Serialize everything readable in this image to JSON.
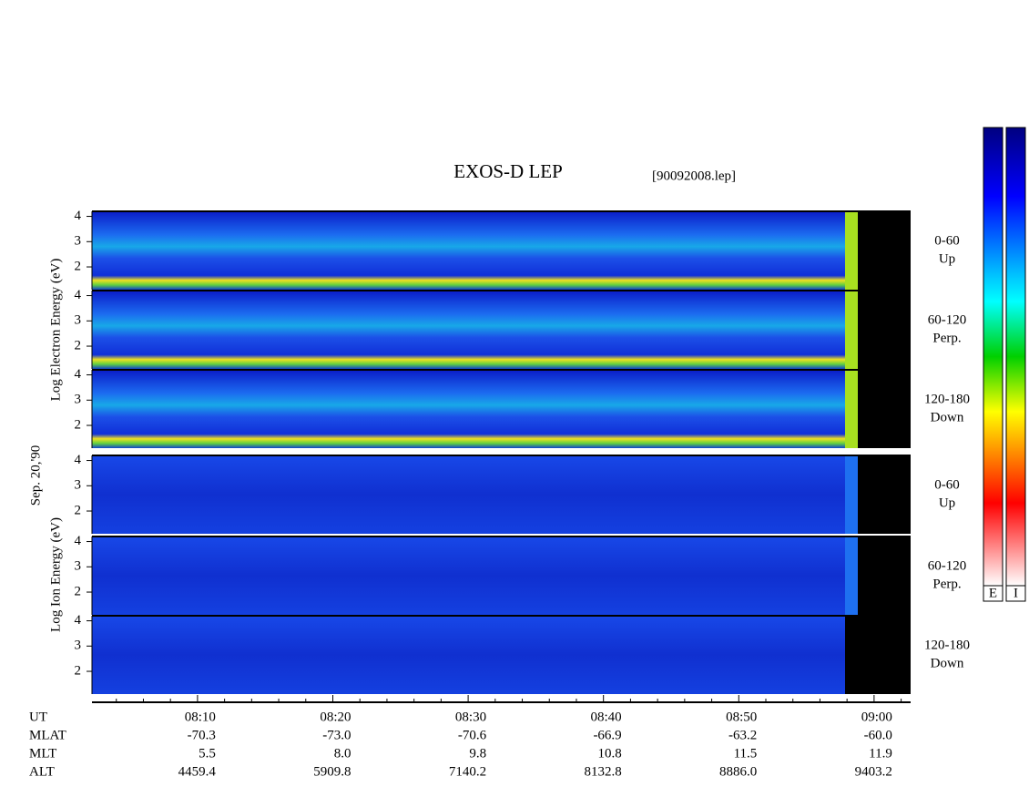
{
  "chart_data": {
    "type": "spectrogram",
    "title": "EXOS-D LEP",
    "file": "[90092008.lep]",
    "date_label": "Sep. 20,'90",
    "ylim": [
      1.1,
      4.2
    ],
    "yticks": [
      2,
      3,
      4
    ],
    "xlim": [
      482.2,
      542.7
    ],
    "xticks": [
      {
        "value": 490,
        "label": "08:10"
      },
      {
        "value": 500,
        "label": "08:20"
      },
      {
        "value": 510,
        "label": "08:30"
      },
      {
        "value": 520,
        "label": "08:40"
      },
      {
        "value": 530,
        "label": "08:50"
      },
      {
        "value": 540,
        "label": "09:00"
      }
    ],
    "xminorticks": [
      484,
      486,
      488,
      492,
      494,
      496,
      498,
      502,
      504,
      506,
      508,
      512,
      514,
      516,
      518,
      522,
      524,
      526,
      528,
      532,
      534,
      536,
      538,
      542
    ],
    "x_label": "UT",
    "groups": [
      {
        "ylabel": "Log Electron Energy (eV)",
        "panels": [
          {
            "angle": "0-60",
            "direction": "Up"
          },
          {
            "angle": "60-120",
            "direction": "Perp."
          },
          {
            "angle": "120-180",
            "direction": "Down"
          }
        ]
      },
      {
        "ylabel": "Log Ion Energy (eV)",
        "panels": [
          {
            "angle": "0-60",
            "direction": "Up"
          },
          {
            "angle": "60-120",
            "direction": "Perp."
          },
          {
            "angle": "120-180",
            "direction": "Down"
          }
        ]
      }
    ],
    "ephemeris": [
      {
        "name": "MLAT",
        "values": [
          "-70.3",
          "-73.0",
          "-70.6",
          "-66.9",
          "-63.2",
          "-60.0"
        ]
      },
      {
        "name": "MLT",
        "values": [
          "5.5",
          "8.0",
          "9.8",
          "10.8",
          "11.5",
          "11.9"
        ]
      },
      {
        "name": "ALT",
        "values": [
          "4459.4",
          "5909.8",
          "7140.2",
          "8132.8",
          "8886.0",
          "9403.2"
        ]
      }
    ],
    "colorbars": [
      "E",
      "I"
    ]
  }
}
